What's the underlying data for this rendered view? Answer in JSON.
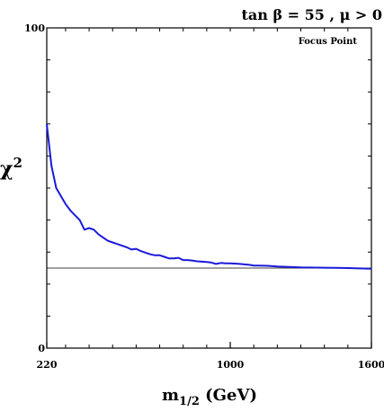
{
  "chart_data": {
    "type": "line",
    "title": "tan β = 55 ,  μ > 0",
    "annotation": "Focus Point",
    "xlabel_main": "m",
    "xlabel_sub": "1/2",
    "xlabel_unit": " (GeV)",
    "ylabel_main": "χ",
    "ylabel_sup": "2",
    "xlim": [
      220,
      1600
    ],
    "ylim": [
      0,
      100
    ],
    "x_ticks": [
      220,
      1000,
      1600
    ],
    "x_tick_labels": [
      "220",
      "1000",
      "1600"
    ],
    "y_ticks": [
      0,
      100
    ],
    "y_tick_labels": [
      "0",
      "100"
    ],
    "reference_line_y": 25,
    "grid": false,
    "series": [
      {
        "color": "#1a1adb",
        "x": [
          220,
          240,
          260,
          280,
          300,
          320,
          340,
          360,
          380,
          400,
          420,
          440,
          460,
          480,
          500,
          520,
          540,
          560,
          580,
          600,
          620,
          640,
          660,
          680,
          700,
          720,
          740,
          760,
          780,
          800,
          820,
          840,
          860,
          880,
          900,
          920,
          940,
          960,
          980,
          1000,
          1040,
          1080,
          1100,
          1120,
          1160,
          1200,
          1300,
          1400,
          1500,
          1600
        ],
        "y": [
          70,
          57,
          50,
          47.5,
          45,
          43,
          41.5,
          40,
          37,
          37.5,
          37,
          35.5,
          34.5,
          33.5,
          33,
          32.5,
          32,
          31.5,
          30.8,
          31,
          30.3,
          29.8,
          29.3,
          29,
          29,
          28.5,
          28,
          28,
          28.2,
          27.5,
          27.5,
          27.3,
          27.1,
          27,
          26.9,
          26.7,
          26.3,
          26.6,
          26.5,
          26.5,
          26.3,
          26,
          25.8,
          25.8,
          25.7,
          25.5,
          25.2,
          25.1,
          25,
          24.8
        ]
      }
    ]
  }
}
